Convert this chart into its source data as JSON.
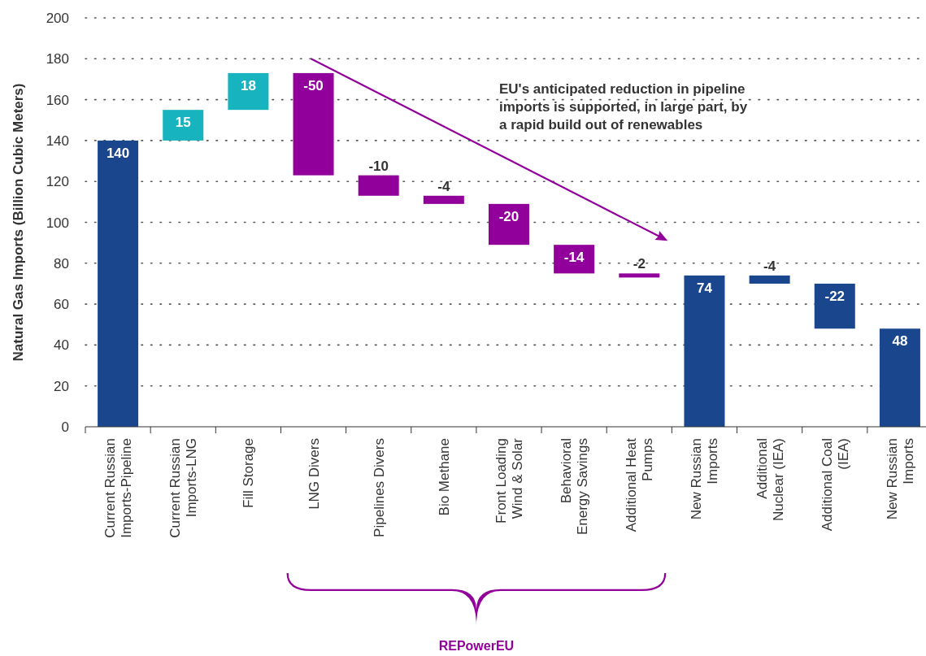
{
  "chart_data": {
    "type": "bar",
    "ylabel": "Natural Gas Imports (Billion Cubic Meters)",
    "categories": [
      "Current Russian Imports-Pipeline",
      "Current Russian Imports-LNG",
      "Fill Storage",
      "LNG Divers",
      "Pipelines Divers",
      "Bio Methane",
      "Front Loading Wind & Solar",
      "Behavioral Energy Savings",
      "Additional Heat Pumps",
      "New Russian Imports",
      "Additional Nuclear (IEA)",
      "Additional Coal (IEA)",
      "New Russian Imports"
    ],
    "values": [
      140,
      15,
      18,
      -50,
      -10,
      -4,
      -20,
      -14,
      -2,
      74,
      -4,
      -22,
      48
    ],
    "base": [
      0,
      140,
      155,
      173,
      123,
      113,
      109,
      89,
      75,
      0,
      74,
      70,
      0
    ],
    "colors": [
      "#1a468e",
      "#17b3bf",
      "#17b3bf",
      "#92009b",
      "#92009b",
      "#92009b",
      "#92009b",
      "#92009b",
      "#92009b",
      "#1a468e",
      "#1a468e",
      "#1a468e",
      "#1a468e"
    ],
    "data_labels": true,
    "ylim": [
      0,
      200
    ],
    "yticks": [
      0,
      20,
      40,
      60,
      80,
      100,
      120,
      140,
      160,
      180,
      200
    ],
    "grid": "y",
    "annotations": [
      "EU's anticipated reduction in pipeline imports is supported, in large part, by a rapid build out of renewables",
      "REPowerEU"
    ]
  }
}
